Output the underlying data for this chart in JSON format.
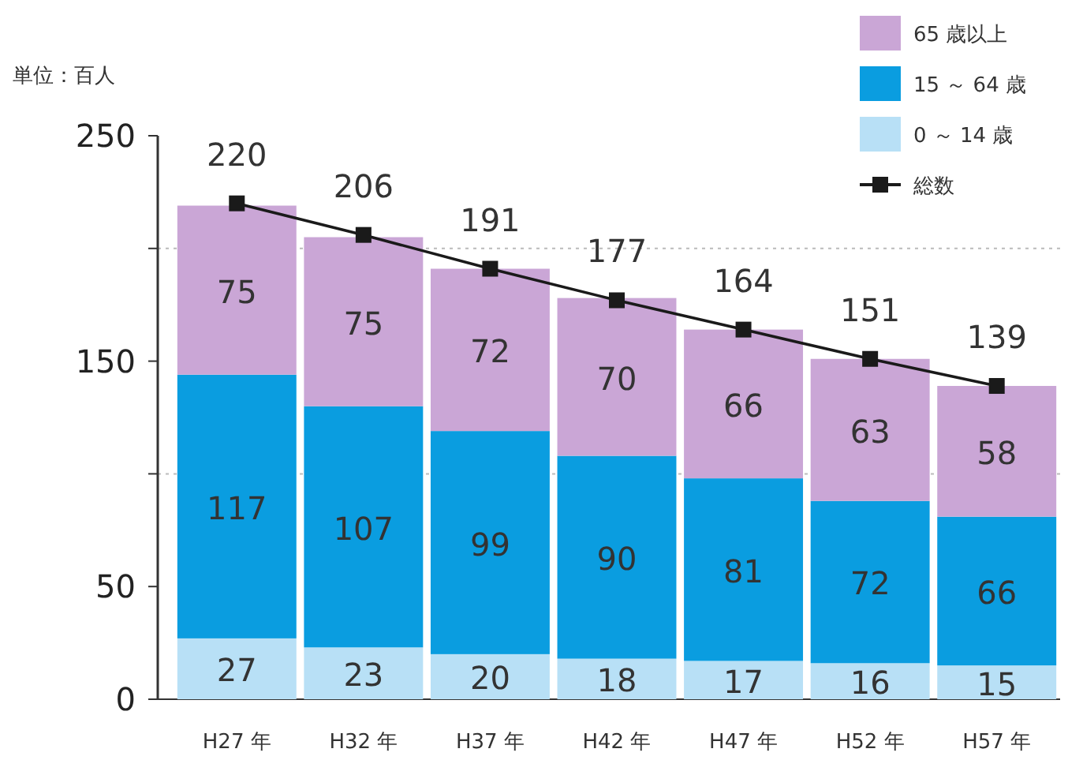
{
  "chart_data": {
    "type": "bar",
    "stacked": true,
    "ylabel": "単位：百人",
    "categories": [
      "H27 年",
      "H32 年",
      "H37 年",
      "H42 年",
      "H47 年",
      "H52 年",
      "H57 年"
    ],
    "series": [
      {
        "name": "0 ～ 14 歳",
        "color": "#b8e0f6",
        "values": [
          27,
          23,
          20,
          18,
          17,
          16,
          15
        ]
      },
      {
        "name": "15 ～ 64 歳",
        "color": "#0a9de0",
        "values": [
          117,
          107,
          99,
          90,
          81,
          72,
          66
        ]
      },
      {
        "name": "65 歳以上",
        "color": "#caa6d6",
        "values": [
          75,
          75,
          72,
          70,
          66,
          63,
          58
        ]
      },
      {
        "name": "総数",
        "type": "line",
        "color": "#1a1a1a",
        "marker": "square",
        "values": [
          220,
          206,
          191,
          177,
          164,
          151,
          139
        ]
      }
    ],
    "ylim": [
      0,
      250
    ],
    "yticks": [
      0,
      50,
      {
        "value": 100,
        "label": null
      },
      150,
      {
        "value": 200,
        "label": null
      },
      250
    ],
    "ref_lines": [
      {
        "axis": "y",
        "value": 100,
        "line_style": "dotted",
        "color": "#bbbbbb"
      },
      {
        "axis": "y",
        "value": 200,
        "line_style": "dotted",
        "color": "#bbbbbb"
      }
    ],
    "data_labels": true,
    "legend": "top right"
  }
}
